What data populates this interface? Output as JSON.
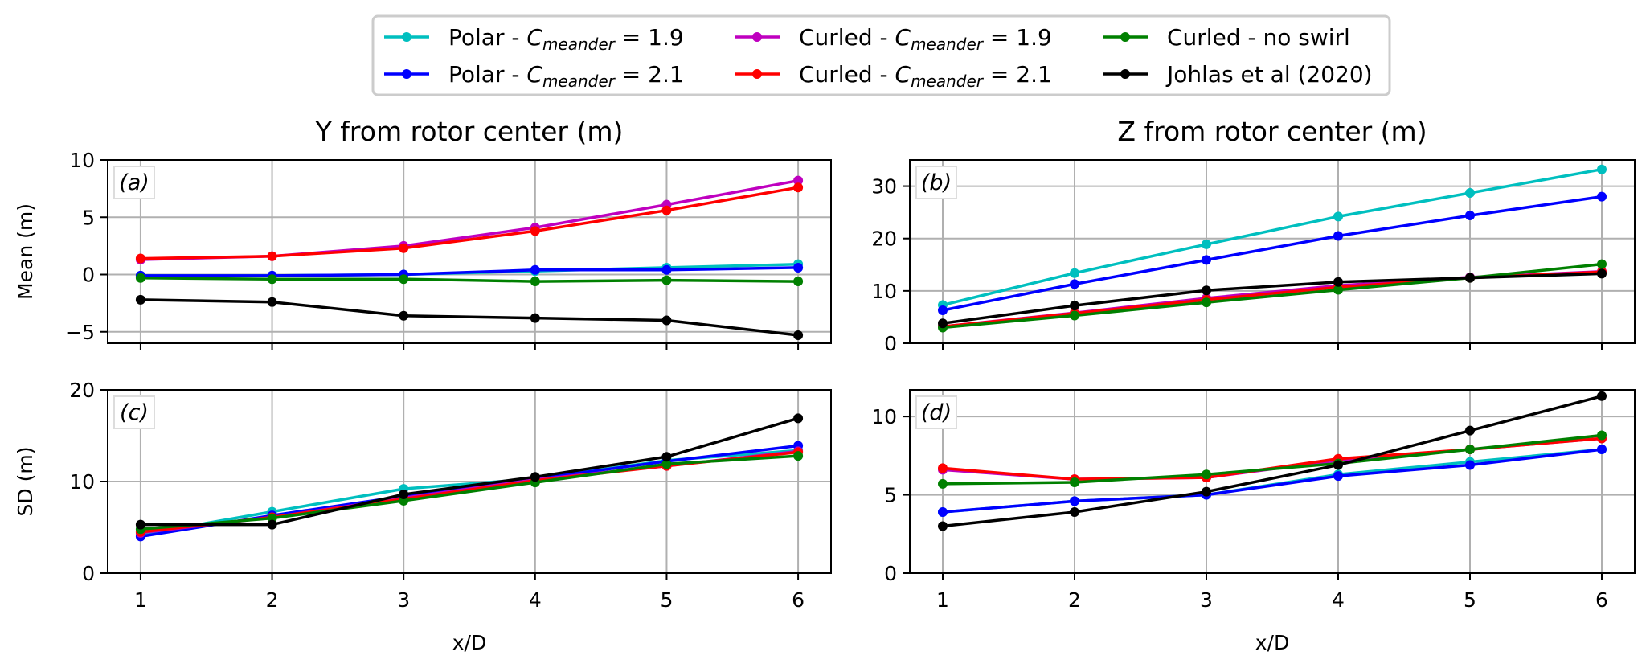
{
  "chart_data": [
    {
      "panel": "(a)",
      "type": "line",
      "column_title": "Y from rotor center (m)",
      "ylabel": "Mean (m)",
      "xlabel": "",
      "x": [
        1,
        2,
        3,
        4,
        5,
        6
      ],
      "xticks": [
        "1",
        "2",
        "3",
        "4",
        "5",
        "6"
      ],
      "xlim": [
        0.75,
        6.25
      ],
      "ylim": [
        -6,
        10
      ],
      "yticks": [
        -5,
        0,
        5,
        10
      ],
      "grid": true,
      "series": [
        {
          "key": "polar19",
          "values": [
            -0.1,
            -0.1,
            0.0,
            0.3,
            0.6,
            0.9
          ]
        },
        {
          "key": "polar21",
          "values": [
            -0.1,
            -0.1,
            0.0,
            0.4,
            0.4,
            0.6
          ]
        },
        {
          "key": "curled19",
          "values": [
            1.3,
            1.6,
            2.5,
            4.1,
            6.1,
            8.2
          ]
        },
        {
          "key": "curled21",
          "values": [
            1.4,
            1.6,
            2.3,
            3.8,
            5.6,
            7.6
          ]
        },
        {
          "key": "curledNoSwirl",
          "values": [
            -0.3,
            -0.4,
            -0.4,
            -0.6,
            -0.5,
            -0.6
          ]
        },
        {
          "key": "johlas",
          "values": [
            -2.2,
            -2.4,
            -3.6,
            -3.8,
            -4.0,
            -5.3
          ]
        }
      ]
    },
    {
      "panel": "(b)",
      "type": "line",
      "column_title": "Z from rotor center (m)",
      "ylabel": "",
      "xlabel": "",
      "x": [
        1,
        2,
        3,
        4,
        5,
        6
      ],
      "xticks": [
        "1",
        "2",
        "3",
        "4",
        "5",
        "6"
      ],
      "xlim": [
        0.75,
        6.25
      ],
      "ylim": [
        0,
        35
      ],
      "yticks": [
        0,
        10,
        20,
        30
      ],
      "grid": true,
      "series": [
        {
          "key": "polar19",
          "values": [
            7.3,
            13.4,
            18.9,
            24.2,
            28.7,
            33.2
          ]
        },
        {
          "key": "polar21",
          "values": [
            6.3,
            11.3,
            15.9,
            20.5,
            24.4,
            28.0
          ]
        },
        {
          "key": "curled19",
          "values": [
            3.2,
            5.8,
            8.6,
            11.0,
            12.6,
            13.7
          ]
        },
        {
          "key": "curled21",
          "values": [
            3.2,
            5.7,
            8.3,
            10.7,
            12.5,
            13.6
          ]
        },
        {
          "key": "curledNoSwirl",
          "values": [
            3.0,
            5.3,
            7.8,
            10.2,
            12.5,
            15.1
          ]
        },
        {
          "key": "johlas",
          "values": [
            3.8,
            7.2,
            10.1,
            11.7,
            12.5,
            13.3
          ]
        }
      ]
    },
    {
      "panel": "(c)",
      "type": "line",
      "column_title": "",
      "ylabel": "SD (m)",
      "xlabel": "x/D",
      "x": [
        1,
        2,
        3,
        4,
        5,
        6
      ],
      "xticks": [
        "1",
        "2",
        "3",
        "4",
        "5",
        "6"
      ],
      "xlim": [
        0.75,
        6.25
      ],
      "ylim": [
        0,
        20
      ],
      "yticks": [
        0,
        10,
        20
      ],
      "grid": true,
      "series": [
        {
          "key": "polar19",
          "values": [
            4.2,
            6.7,
            9.2,
            10.3,
            12.3,
            13.4
          ]
        },
        {
          "key": "polar21",
          "values": [
            4.0,
            6.3,
            8.4,
            10.3,
            12.2,
            13.9
          ]
        },
        {
          "key": "curled19",
          "values": [
            4.4,
            6.1,
            8.2,
            10.2,
            11.7,
            13.3
          ]
        },
        {
          "key": "curled21",
          "values": [
            4.5,
            6.1,
            8.1,
            10.1,
            11.7,
            13.2
          ]
        },
        {
          "key": "curledNoSwirl",
          "values": [
            4.8,
            6.0,
            7.9,
            9.9,
            11.9,
            12.8
          ]
        },
        {
          "key": "johlas",
          "values": [
            5.3,
            5.3,
            8.6,
            10.5,
            12.7,
            16.9
          ]
        }
      ]
    },
    {
      "panel": "(d)",
      "type": "line",
      "column_title": "",
      "ylabel": "",
      "xlabel": "x/D",
      "x": [
        1,
        2,
        3,
        4,
        5,
        6
      ],
      "xticks": [
        "1",
        "2",
        "3",
        "4",
        "5",
        "6"
      ],
      "xlim": [
        0.75,
        6.25
      ],
      "ylim": [
        0,
        11.7
      ],
      "yticks": [
        0,
        5,
        10
      ],
      "grid": true,
      "series": [
        {
          "key": "polar19",
          "values": [
            3.9,
            4.6,
            5.0,
            6.3,
            7.1,
            7.9
          ]
        },
        {
          "key": "polar21",
          "values": [
            3.9,
            4.6,
            5.0,
            6.2,
            6.9,
            7.9
          ]
        },
        {
          "key": "curled19",
          "values": [
            6.6,
            6.0,
            6.1,
            7.2,
            7.9,
            8.6
          ]
        },
        {
          "key": "curled21",
          "values": [
            6.7,
            6.0,
            6.1,
            7.3,
            7.9,
            8.6
          ]
        },
        {
          "key": "curledNoSwirl",
          "values": [
            5.7,
            5.8,
            6.3,
            7.0,
            7.9,
            8.8
          ]
        },
        {
          "key": "johlas",
          "values": [
            3.0,
            3.9,
            5.2,
            6.9,
            9.1,
            11.3
          ]
        }
      ]
    }
  ],
  "legend": {
    "placement": "top-center",
    "items": [
      {
        "key": "polar19",
        "label": "Polar - ",
        "math": "C",
        "sub": "meander",
        "tail": " = 1.9",
        "color": "#00bfbf"
      },
      {
        "key": "polar21",
        "label": "Polar - ",
        "math": "C",
        "sub": "meander",
        "tail": " = 2.1",
        "color": "#0000ff"
      },
      {
        "key": "curled19",
        "label": "Curled - ",
        "math": "C",
        "sub": "meander",
        "tail": " = 1.9",
        "color": "#bf00bf"
      },
      {
        "key": "curled21",
        "label": "Curled - ",
        "math": "C",
        "sub": "meander",
        "tail": " = 2.1",
        "color": "#ff0000"
      },
      {
        "key": "curledNoSwirl",
        "label": "Curled - no swirl",
        "math": "",
        "sub": "",
        "tail": "",
        "color": "#008000"
      },
      {
        "key": "johlas",
        "label": "Johlas et al (2020)",
        "math": "",
        "sub": "",
        "tail": "",
        "color": "#000000"
      }
    ]
  }
}
